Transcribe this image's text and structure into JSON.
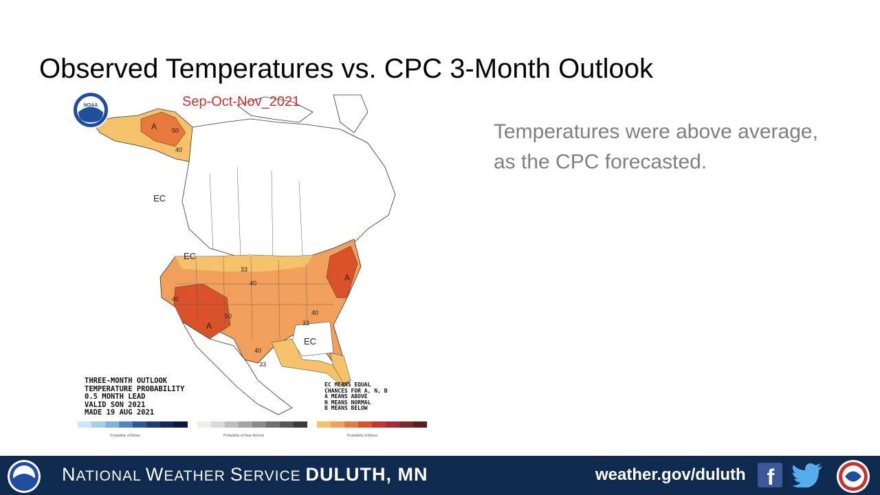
{
  "slide": {
    "title": "Observed Temperatures vs. CPC 3-Month Outlook",
    "side_text_line1": "Temperatures were above average,",
    "side_text_line2": "as the CPC forecasted."
  },
  "map": {
    "period": "Sep-Oct-Nov_2021",
    "info_lines": [
      "THREE-MONTH OUTLOOK",
      "TEMPERATURE PROBABILITY",
      "0.5 MONTH LEAD",
      "VALID SON 2021",
      "MADE 19 AUG 2021"
    ],
    "legend_lines": [
      "EC MEANS EQUAL",
      "CHANCES FOR A, N, B",
      "A MEANS ABOVE",
      "N MEANS NORMAL",
      "B MEANS BELOW"
    ],
    "labels": {
      "ec": "EC",
      "a": "A",
      "p33": "33",
      "p40": "40",
      "p50": "50"
    },
    "noaa_logo_text": "NOAA",
    "scale_below_caption": "Probability of Below",
    "scale_normal_caption": "Probability of Near-Normal",
    "scale_above_caption": "Probability of Above",
    "colors": {
      "above_33": "#f5c26b",
      "above_40": "#f0a05a",
      "above_50": "#e8783c",
      "above_60": "#d9522a",
      "below_33": "#a6cfee",
      "below_40": "#7fb3e0",
      "normal": "#bdbdbd"
    }
  },
  "footer": {
    "title_n": "N",
    "title_ational": "ATIONAL ",
    "title_w": "W",
    "title_eather": "EATHER ",
    "title_s": "S",
    "title_ervice": "ERVICE ",
    "title_office": "DULUTH, MN",
    "url": "weather.gov/duluth",
    "facebook_icon": "facebook-icon",
    "twitter_icon": "twitter-icon",
    "facebook_glyph": "f"
  }
}
